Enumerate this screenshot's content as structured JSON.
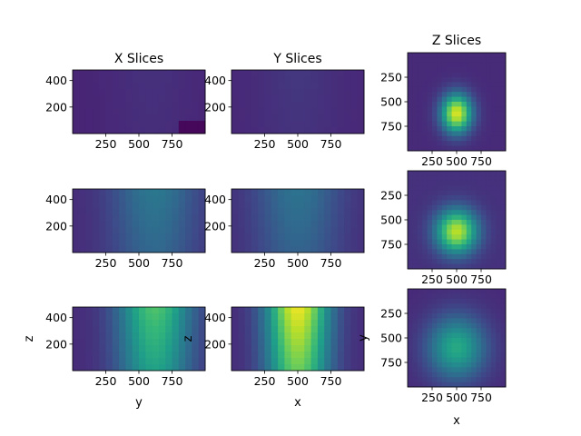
{
  "chart_data": {
    "type": "heatmap",
    "colormap": "viridis",
    "panels_layout": "3 rows x 3 columns",
    "column_titles": [
      "X Slices",
      "Y Slices",
      "Z Slices"
    ],
    "bottom_xlabels": [
      "y",
      "x",
      "x"
    ],
    "bottom_ylabels": [
      "z",
      "z",
      "y"
    ],
    "x_ticks": [
      "250",
      "500",
      "750"
    ],
    "xz_y_ticks": [
      "200",
      "400"
    ],
    "z_y_ticks": [
      "250",
      "500",
      "750"
    ],
    "x_range": [
      0,
      1000
    ],
    "xz_y_range": [
      0,
      480
    ],
    "z_y_range": [
      0,
      1000
    ],
    "z_y_inverted": true,
    "cmap_range": [
      0,
      1
    ],
    "panels": [
      {
        "row": 0,
        "col": 0,
        "kind": "xslice",
        "level": 0.14,
        "center_x": 600,
        "sx": 230,
        "base": 0.1,
        "corner_dark": true
      },
      {
        "row": 0,
        "col": 1,
        "kind": "yslice",
        "level": 0.16,
        "center_x": 500,
        "sx": 220,
        "base": 0.11
      },
      {
        "row": 0,
        "col": 2,
        "kind": "zslice",
        "level": 0.95,
        "center_x": 500,
        "center_y": 620,
        "sx": 110,
        "sy": 140,
        "base": 0.12
      },
      {
        "row": 1,
        "col": 0,
        "kind": "xslice",
        "level": 0.4,
        "center_x": 620,
        "sx": 240,
        "base": 0.12,
        "corner_dark": false
      },
      {
        "row": 1,
        "col": 1,
        "kind": "yslice",
        "level": 0.38,
        "center_x": 500,
        "sx": 240,
        "base": 0.12
      },
      {
        "row": 1,
        "col": 2,
        "kind": "zslice",
        "level": 0.9,
        "center_x": 500,
        "center_y": 620,
        "sx": 150,
        "sy": 160,
        "base": 0.14
      },
      {
        "row": 2,
        "col": 0,
        "kind": "xslice",
        "level": 0.72,
        "center_x": 620,
        "sx": 200,
        "base": 0.12,
        "corner_dark": false
      },
      {
        "row": 2,
        "col": 1,
        "kind": "yslice",
        "level": 0.98,
        "center_x": 500,
        "sx": 170,
        "base": 0.12
      },
      {
        "row": 2,
        "col": 2,
        "kind": "zslice",
        "level": 0.6,
        "center_x": 500,
        "center_y": 600,
        "sx": 210,
        "sy": 230,
        "base": 0.12
      }
    ]
  }
}
